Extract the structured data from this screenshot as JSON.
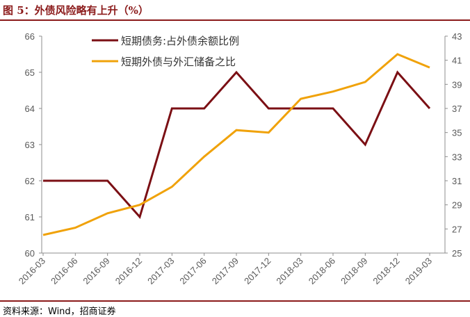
{
  "header": {
    "title": "图 5：外债风险略有上升（%）"
  },
  "footer": {
    "source": "资料来源：Wind，招商证券"
  },
  "chart_data": {
    "type": "line",
    "categories": [
      "2016-03",
      "2016-06",
      "2016-09",
      "2016-12",
      "2017-03",
      "2017-06",
      "2017-09",
      "2017-12",
      "2018-03",
      "2018-06",
      "2018-09",
      "2018-12",
      "2019-03"
    ],
    "series": [
      {
        "name": "短期债务:占外债余额比例",
        "axis": "left",
        "color": "#7b0f14",
        "values": [
          62,
          62,
          62,
          61,
          64,
          64,
          65,
          64,
          64,
          64,
          63,
          65,
          64
        ]
      },
      {
        "name": "短期外债与外汇储备之比",
        "axis": "right",
        "color": "#f0a20a",
        "values": [
          26.5,
          27.1,
          28.3,
          29.0,
          30.5,
          33.0,
          35.2,
          35.0,
          37.8,
          38.4,
          39.2,
          41.5,
          40.4
        ]
      }
    ],
    "y_left": {
      "min": 60,
      "max": 66,
      "ticks": [
        "60",
        "61",
        "62",
        "63",
        "64",
        "65",
        "66"
      ]
    },
    "y_right": {
      "min": 25,
      "max": 43,
      "ticks": [
        "25",
        "27",
        "29",
        "31",
        "33",
        "35",
        "37",
        "39",
        "41",
        "43"
      ]
    },
    "legend": "top-left",
    "grid": false
  }
}
